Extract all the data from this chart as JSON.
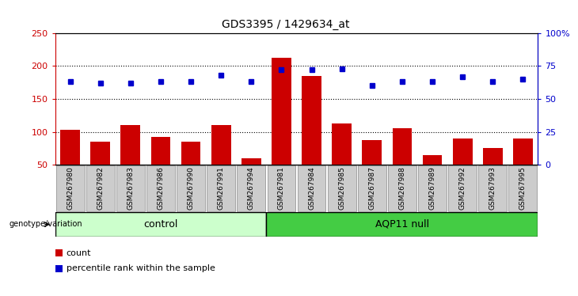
{
  "title": "GDS3395 / 1429634_at",
  "samples": [
    "GSM267980",
    "GSM267982",
    "GSM267983",
    "GSM267986",
    "GSM267990",
    "GSM267991",
    "GSM267994",
    "GSM267981",
    "GSM267984",
    "GSM267985",
    "GSM267987",
    "GSM267988",
    "GSM267989",
    "GSM267992",
    "GSM267993",
    "GSM267995"
  ],
  "counts": [
    103,
    85,
    110,
    92,
    85,
    110,
    60,
    212,
    185,
    113,
    87,
    105,
    65,
    90,
    75,
    90
  ],
  "percentile_ranks": [
    63,
    62,
    62,
    63,
    63,
    68,
    63,
    72,
    72,
    73,
    60,
    63,
    63,
    67,
    63,
    65
  ],
  "n_control": 7,
  "n_aqp11": 9,
  "ylim_left": [
    50,
    250
  ],
  "ylim_right": [
    0,
    100
  ],
  "yticks_left": [
    50,
    100,
    150,
    200,
    250
  ],
  "yticks_right": [
    0,
    25,
    50,
    75,
    100
  ],
  "ytick_labels_right": [
    "0",
    "25",
    "50",
    "75",
    "100%"
  ],
  "bar_color": "#cc0000",
  "dot_color": "#0000cc",
  "control_bg": "#ccffcc",
  "aqp11_bg": "#44cc44",
  "control_label": "control",
  "aqp11_label": "AQP11 null",
  "genotype_label": "genotype/variation",
  "legend_count": "count",
  "legend_percentile": "percentile rank within the sample",
  "sample_bg": "#cccccc",
  "left_tick_color": "#cc0000",
  "right_tick_color": "#0000cc"
}
